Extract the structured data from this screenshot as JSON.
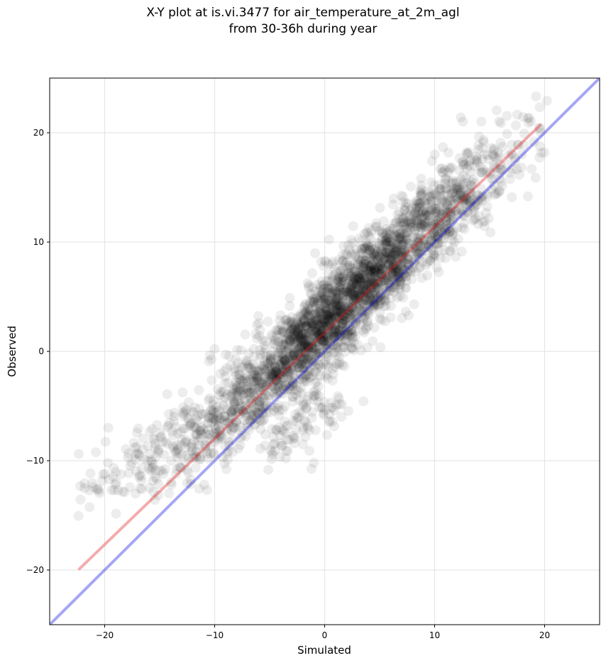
{
  "chart_data": {
    "type": "scatter",
    "title_lines": [
      "X-Y plot at is.vi.3477 for air_temperature_at_2m_agl",
      "from 30-36h during year"
    ],
    "xlabel": "Simulated",
    "ylabel": "Observed",
    "xlim": [
      -25,
      25
    ],
    "ylim": [
      -25,
      25
    ],
    "x_ticks": [
      -20,
      -10,
      0,
      10,
      20
    ],
    "y_ticks": [
      -20,
      -10,
      0,
      10,
      20
    ],
    "x_tick_labels": [
      "−20",
      "−10",
      "0",
      "10",
      "20"
    ],
    "y_tick_labels": [
      "−20",
      "−10",
      "0",
      "10",
      "20"
    ],
    "grid": true,
    "point_color": "#000000",
    "point_opacity": 0.07,
    "reference_lines": [
      {
        "kind": "one-to-one",
        "color": "#0000e0",
        "x": [
          -25,
          25
        ],
        "y": [
          -25,
          25
        ]
      },
      {
        "kind": "fit",
        "color": "#e01010",
        "x": [
          -22.3,
          19.6
        ],
        "y": [
          -19.9,
          20.7
        ]
      }
    ],
    "point_clusters": [
      {
        "x": -20.5,
        "y": -12.5,
        "spread": 1.2,
        "count": 30
      },
      {
        "x": -16.5,
        "y": -10.5,
        "spread": 1.6,
        "count": 60
      },
      {
        "x": -13.0,
        "y": -9.0,
        "spread": 1.8,
        "count": 90
      },
      {
        "x": -10.0,
        "y": -6.5,
        "spread": 1.7,
        "count": 140
      },
      {
        "x": -7.0,
        "y": -4.0,
        "spread": 1.7,
        "count": 200
      },
      {
        "x": -4.0,
        "y": -1.5,
        "spread": 1.7,
        "count": 280
      },
      {
        "x": -1.5,
        "y": 1.0,
        "spread": 1.5,
        "count": 380
      },
      {
        "x": 1.0,
        "y": 3.5,
        "spread": 1.5,
        "count": 420
      },
      {
        "x": 3.5,
        "y": 6.0,
        "spread": 1.5,
        "count": 400
      },
      {
        "x": 6.0,
        "y": 8.5,
        "spread": 1.5,
        "count": 350
      },
      {
        "x": 9.0,
        "y": 11.5,
        "spread": 1.5,
        "count": 280
      },
      {
        "x": 12.0,
        "y": 14.0,
        "spread": 1.6,
        "count": 180
      },
      {
        "x": 15.0,
        "y": 17.0,
        "spread": 1.6,
        "count": 90
      },
      {
        "x": 18.0,
        "y": 20.0,
        "spread": 1.4,
        "count": 30
      },
      {
        "x": -3.0,
        "y": -7.5,
        "spread": 1.8,
        "count": 60
      },
      {
        "x": -0.5,
        "y": -5.0,
        "spread": 1.6,
        "count": 50
      }
    ]
  }
}
